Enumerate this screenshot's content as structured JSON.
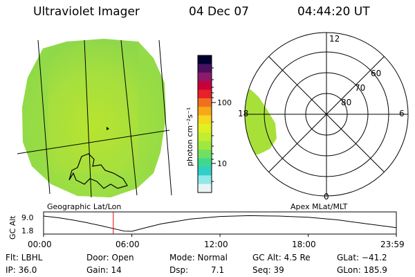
{
  "header": {
    "instrument": "Ultraviolet Imager",
    "date": "04 Dec 07",
    "time": "04:44:20 UT"
  },
  "colorbar": {
    "unit_label": "photon cm⁻²s⁻¹",
    "ticks": [
      "100",
      "10"
    ],
    "colors": [
      "#000033",
      "#4b1060",
      "#8c1a6a",
      "#c8003a",
      "#e8202a",
      "#f07020",
      "#f7a818",
      "#f5d820",
      "#e0f020",
      "#c0ee30",
      "#a0e840",
      "#70e060",
      "#40d890",
      "#30d0c8",
      "#90e8e8",
      "#e8f4f4"
    ]
  },
  "left_panel": {
    "caption": "Geographic Lat/Lon"
  },
  "right_panel": {
    "caption": "Apex MLat/MLT",
    "mlt_labels": {
      "top": "12",
      "left": "18",
      "right": "6",
      "bottom": "0"
    },
    "lat_labels": [
      "60",
      "70",
      "80"
    ]
  },
  "timeline": {
    "ylabel": "GC Alt",
    "yticks": [
      "9.0",
      "1.8"
    ],
    "xticks": [
      "00:00",
      "06:00",
      "12:00",
      "18:00",
      "23:59"
    ]
  },
  "chart_data": {
    "type": "line",
    "title": "",
    "xlabel": "",
    "ylabel": "GC Alt",
    "x_hours": [
      0,
      1,
      2,
      3,
      4,
      5,
      5.5,
      6,
      7,
      8,
      10,
      12,
      14,
      16,
      18,
      20,
      22,
      23.99
    ],
    "y_re": [
      9.0,
      8.2,
      7.1,
      5.8,
      4.3,
      2.7,
      1.9,
      1.8,
      3.6,
      5.3,
      7.6,
      8.8,
      9.2,
      9.0,
      8.4,
      7.2,
      5.3,
      3.5
    ],
    "ylim": [
      1.8,
      9.0
    ],
    "xlim": [
      0,
      23.99
    ],
    "current_time_hours": 4.74,
    "current_marker_color": "#e00000"
  },
  "info": {
    "flt": "Flt: LBHL",
    "door": "Door: Open",
    "mode": "Mode: Normal",
    "gcalt": "GC Alt: 4.5 Re",
    "glat": "GLat: −41.2",
    "ip": "IP: 36.0",
    "gain": "Gain: 14",
    "dsp_label": "Dsp:",
    "dsp_value": "7.1",
    "seq": "Seq: 39",
    "glon": "GLon: 185.9"
  }
}
